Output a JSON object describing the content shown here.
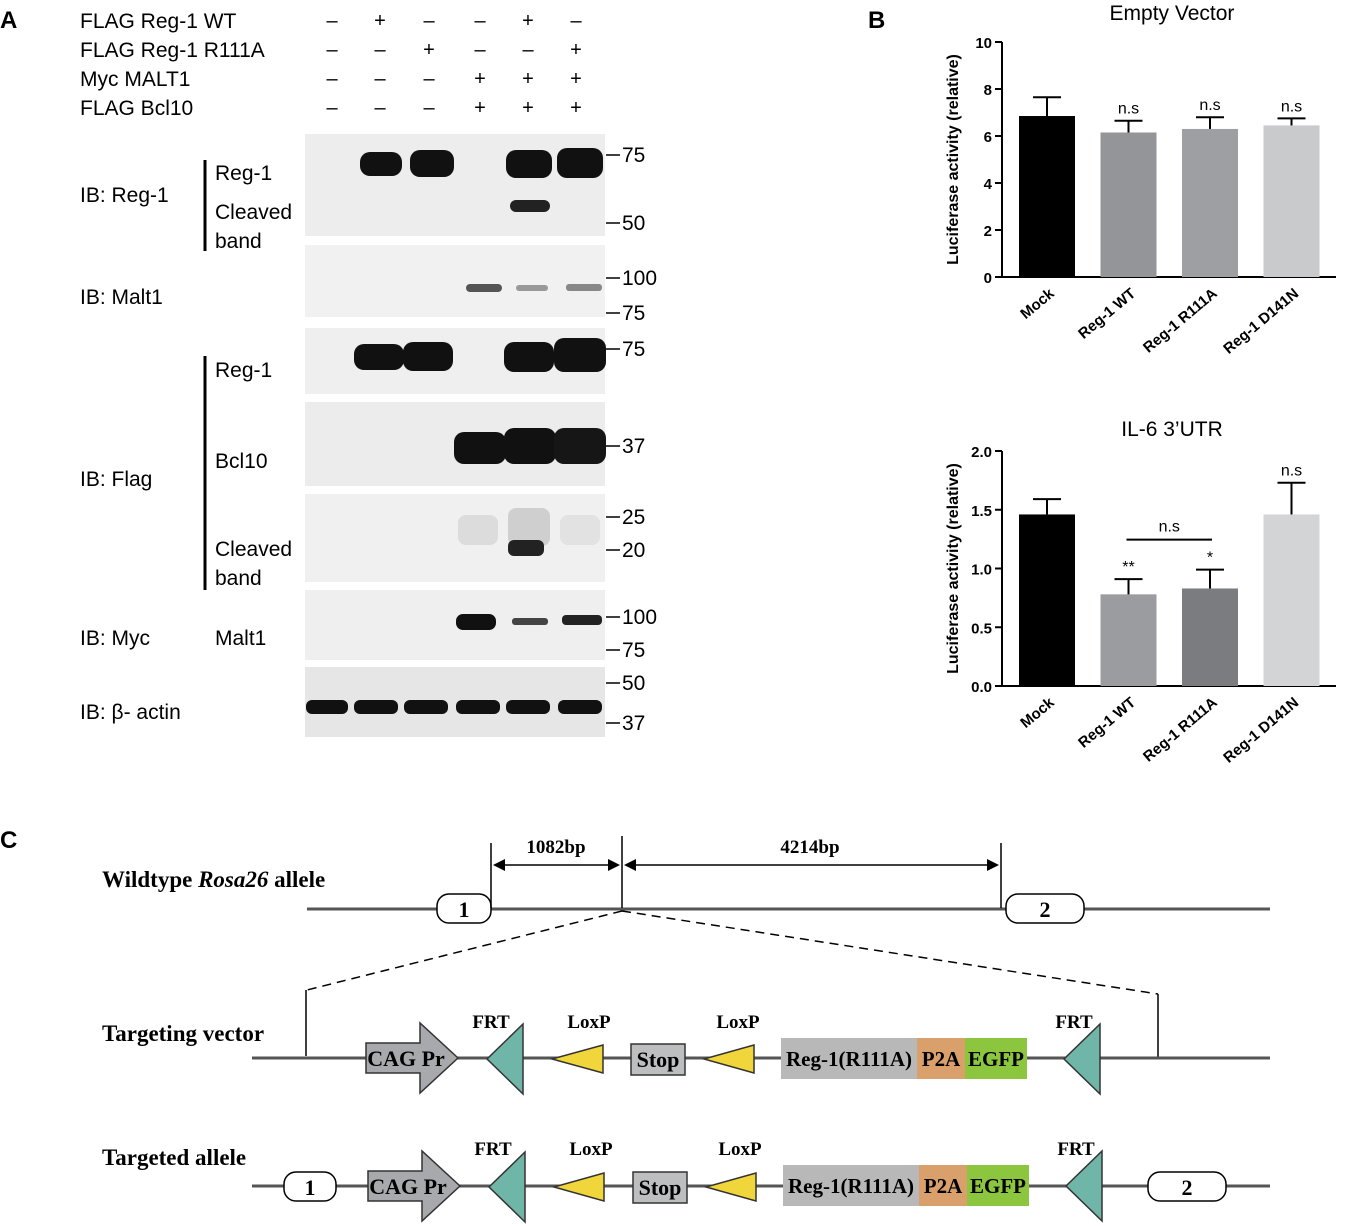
{
  "panel_labels": {
    "a": "A",
    "b": "B",
    "c": "C"
  },
  "panel_a": {
    "conditions": [
      {
        "label": "FLAG Reg-1 WT",
        "signs": [
          "–",
          "+",
          "–",
          "–",
          "+",
          "–"
        ]
      },
      {
        "label": "FLAG Reg-1 R111A",
        "signs": [
          "–",
          "–",
          "+",
          "–",
          "–",
          "+"
        ]
      },
      {
        "label": "Myc MALT1",
        "signs": [
          "–",
          "–",
          "–",
          "+",
          "+",
          "+"
        ]
      },
      {
        "label": "FLAG Bcl10",
        "signs": [
          "–",
          "–",
          "–",
          "+",
          "+",
          "+"
        ]
      }
    ],
    "blots": [
      {
        "ib": "IB: Reg-1",
        "bands": [
          "Reg-1",
          "Cleaved",
          "band"
        ],
        "markers": [
          "75",
          "50"
        ]
      },
      {
        "ib": "IB: Malt1",
        "bands": [],
        "markers": [
          "100",
          "75"
        ]
      },
      {
        "ib": "IB: Flag",
        "bands": [
          "Reg-1",
          "Bcl10",
          "Cleaved",
          "band"
        ],
        "markers": [
          "75",
          "37",
          "25",
          "20"
        ]
      },
      {
        "ib": "IB: Myc",
        "bands": [
          "Malt1"
        ],
        "markers": [
          "100",
          "75"
        ]
      },
      {
        "ib": "IB: β- actin",
        "bands": [],
        "markers": [
          "50",
          "37"
        ]
      }
    ]
  },
  "chart_data": [
    {
      "type": "bar",
      "title": "Empty Vector",
      "ylabel": "Luciferase activity (relative)",
      "xlabel": "",
      "categories": [
        "Mock",
        "Reg-1 WT",
        "Reg-1 R111A",
        "Reg-1 D141N"
      ],
      "values": [
        6.85,
        6.15,
        6.3,
        6.45
      ],
      "errors": [
        0.8,
        0.5,
        0.5,
        0.3
      ],
      "annotations": [
        "",
        "n.s",
        "n.s",
        "n.s"
      ],
      "colors": [
        "#000000",
        "#939598",
        "#9d9fa2",
        "#c9cacc"
      ],
      "ylim": [
        0,
        10
      ],
      "yticks": [
        "0",
        "2",
        "4",
        "6",
        "8",
        "10"
      ],
      "grid": false
    },
    {
      "type": "bar",
      "title": "IL-6 3’UTR",
      "ylabel": "Luciferase activity (relative)",
      "xlabel": "",
      "categories": [
        "Mock",
        "Reg-1 WT",
        "Reg-1 R111A",
        "Reg-1 D141N"
      ],
      "values": [
        1.46,
        0.78,
        0.83,
        1.46
      ],
      "errors": [
        0.13,
        0.13,
        0.16,
        0.27
      ],
      "annotations": [
        "",
        "**",
        "*",
        "n.s"
      ],
      "bracket": {
        "from": "Reg-1 WT",
        "to": "Reg-1 R111A",
        "label": "n.s"
      },
      "colors": [
        "#000000",
        "#9a9ca0",
        "#7a7c7f",
        "#d3d4d6"
      ],
      "ylim": [
        0,
        2.0
      ],
      "yticks": [
        "0.0",
        "0.5",
        "1.0",
        "1.5",
        "2.0"
      ],
      "grid": false
    }
  ],
  "panel_c": {
    "wildtype_title_pre": "Wildtype ",
    "wildtype_title_italic": "Rosa26",
    "wildtype_title_post": " allele",
    "dist_1": "1082bp",
    "dist_2": "4214bp",
    "exon_1": "1",
    "exon_2": "2",
    "targeting_vector": "Targeting vector",
    "targeted_allele": "Targeted allele",
    "cag": "CAG Pr",
    "frt": "FRT",
    "loxp": "LoxP",
    "stop": "Stop",
    "reg1": "Reg-1(R111A)",
    "p2a": "P2A",
    "egfp": "EGFP",
    "colors": {
      "frt": "#6fb5a8",
      "loxp": "#f1d63b",
      "cag": "#a7a9ac",
      "stop": "#bcbec0",
      "reg1": "#b8b8b8",
      "p2a": "#d9a06b",
      "egfp": "#8cc63f"
    }
  }
}
